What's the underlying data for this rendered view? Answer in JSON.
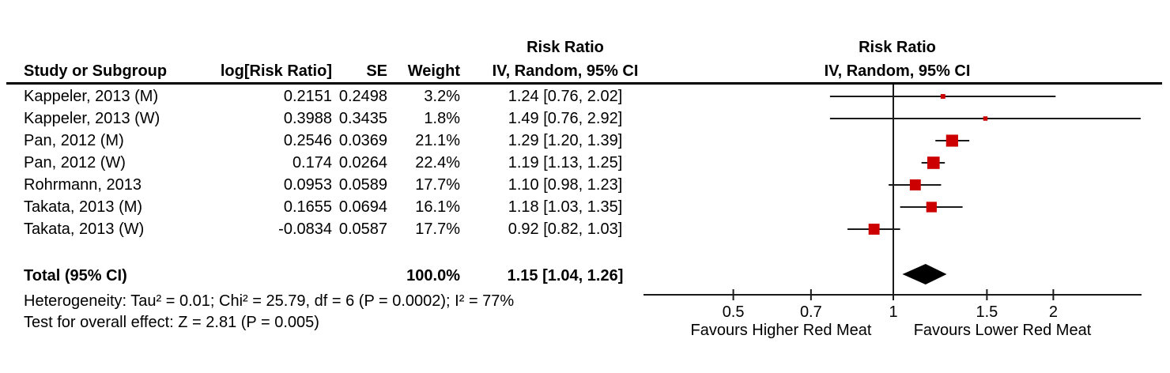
{
  "table": {
    "headers": {
      "study": "Study or Subgroup",
      "log_rr": "log[Risk Ratio]",
      "se": "SE",
      "weight": "Weight",
      "effect_line1": "Risk Ratio",
      "effect_line2": "IV, Random, 95% CI"
    },
    "plot_header": {
      "line1": "Risk Ratio",
      "line2": "IV, Random, 95% CI"
    },
    "total_row": {
      "label": "Total (95% CI)",
      "weight": "100.0%",
      "ci_text": "1.15 [1.04, 1.26]"
    },
    "heterogeneity": "Heterogeneity: Tau² = 0.01; Chi² = 25.79, df = 6 (P = 0.0002); I² = 77%",
    "overall_effect": "Test for overall effect: Z = 2.81 (P = 0.005)"
  },
  "chart_data": {
    "type": "forest",
    "x_scale": "log",
    "null_line": 1,
    "x_ticks": [
      "0.5",
      "0.7",
      "1",
      "1.5",
      "2"
    ],
    "x_tick_values": [
      0.5,
      0.7,
      1,
      1.5,
      2
    ],
    "axis_label_left": "Favours Higher Red Meat",
    "axis_label_right": "Favours Lower Red Meat",
    "marker_color": "#cc0000",
    "line_color": "#1a1a1a",
    "diamond_color": "#000000",
    "studies": [
      {
        "name": "Kappeler, 2013 (M)",
        "log_rr": "0.2151",
        "se": "0.2498",
        "weight": "3.2%",
        "weight_pct": 3.2,
        "rr": 1.24,
        "ci_low": 0.76,
        "ci_high": 2.02,
        "ci_text": "1.24 [0.76, 2.02]"
      },
      {
        "name": "Kappeler, 2013 (W)",
        "log_rr": "0.3988",
        "se": "0.3435",
        "weight": "1.8%",
        "weight_pct": 1.8,
        "rr": 1.49,
        "ci_low": 0.76,
        "ci_high": 2.92,
        "ci_text": "1.49 [0.76, 2.92]"
      },
      {
        "name": "Pan, 2012 (M)",
        "log_rr": "0.2546",
        "se": "0.0369",
        "weight": "21.1%",
        "weight_pct": 21.1,
        "rr": 1.29,
        "ci_low": 1.2,
        "ci_high": 1.39,
        "ci_text": "1.29 [1.20, 1.39]"
      },
      {
        "name": "Pan, 2012 (W)",
        "log_rr": "0.174",
        "se": "0.0264",
        "weight": "22.4%",
        "weight_pct": 22.4,
        "rr": 1.19,
        "ci_low": 1.13,
        "ci_high": 1.25,
        "ci_text": "1.19 [1.13, 1.25]"
      },
      {
        "name": "Rohrmann, 2013",
        "log_rr": "0.0953",
        "se": "0.0589",
        "weight": "17.7%",
        "weight_pct": 17.7,
        "rr": 1.1,
        "ci_low": 0.98,
        "ci_high": 1.23,
        "ci_text": "1.10 [0.98, 1.23]"
      },
      {
        "name": "Takata, 2013 (M)",
        "log_rr": "0.1655",
        "se": "0.0694",
        "weight": "16.1%",
        "weight_pct": 16.1,
        "rr": 1.18,
        "ci_low": 1.03,
        "ci_high": 1.35,
        "ci_text": "1.18 [1.03, 1.35]"
      },
      {
        "name": "Takata, 2013 (W)",
        "log_rr": "-0.0834",
        "se": "0.0587",
        "weight": "17.7%",
        "weight_pct": 17.7,
        "rr": 0.92,
        "ci_low": 0.82,
        "ci_high": 1.03,
        "ci_text": "0.92 [0.82, 1.03]"
      }
    ],
    "total": {
      "rr": 1.15,
      "ci_low": 1.04,
      "ci_high": 1.26,
      "weight_pct": 100.0
    }
  }
}
